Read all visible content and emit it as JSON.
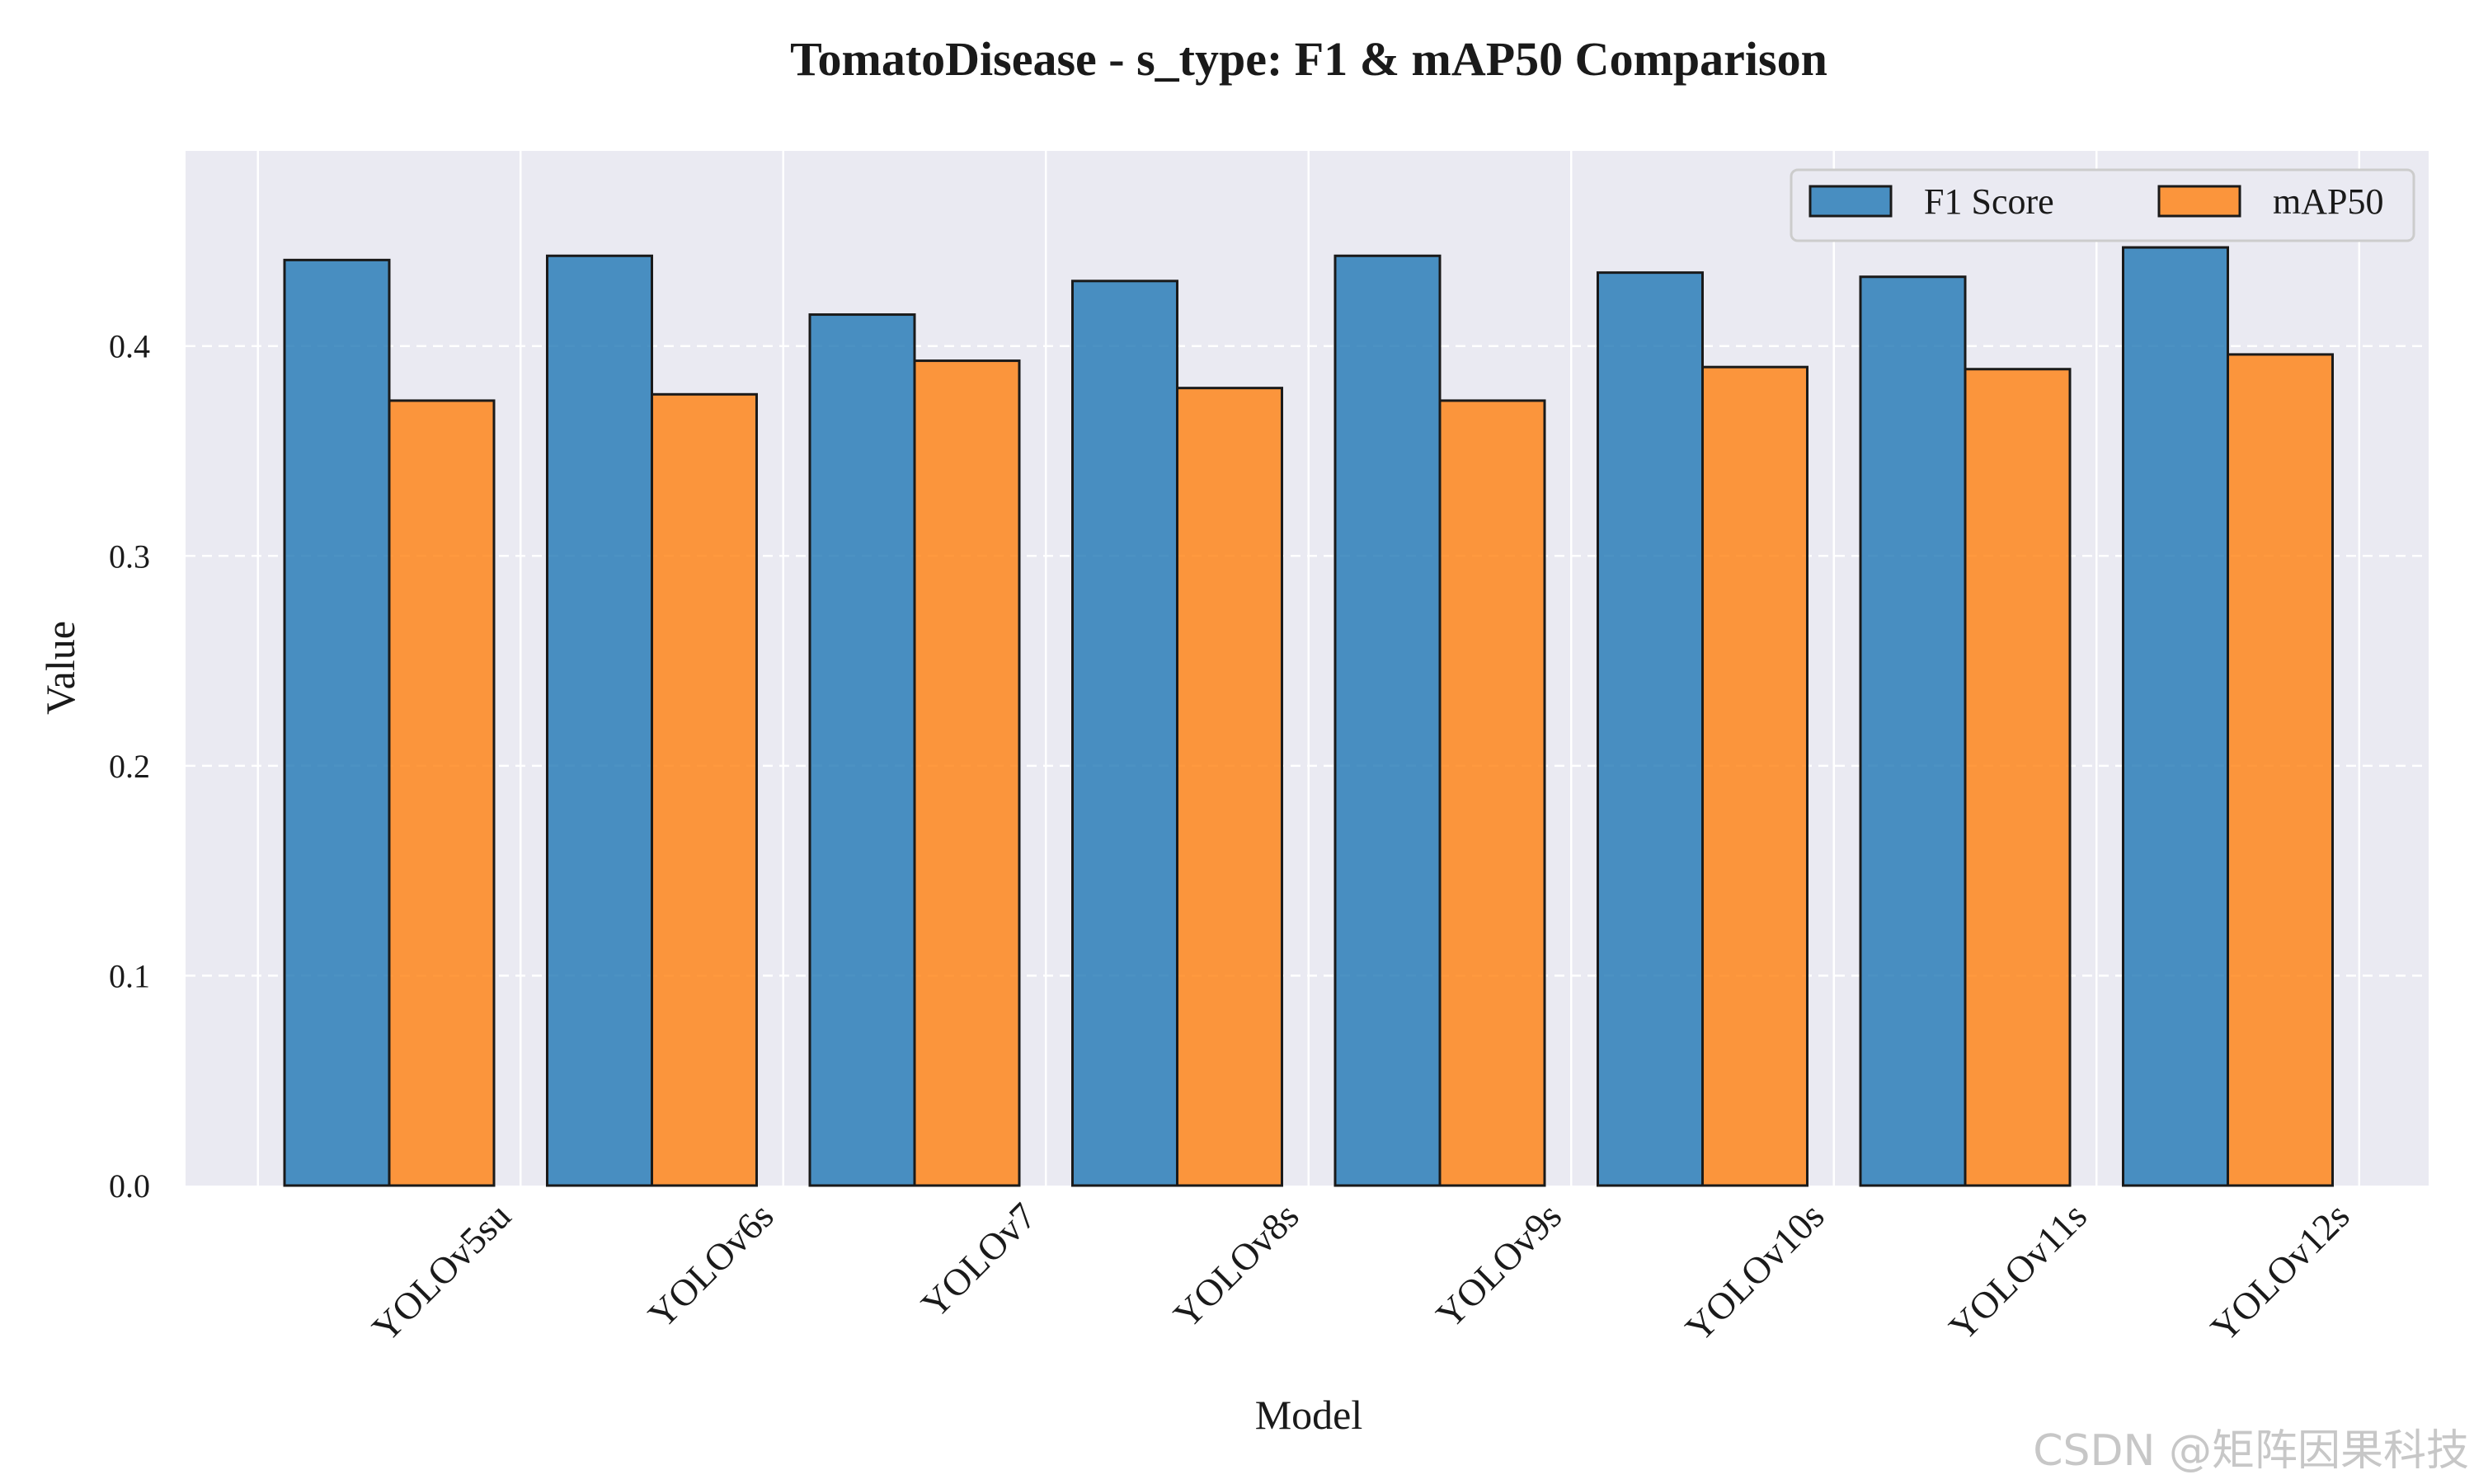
{
  "watermark": "CSDN @矩阵因果科技",
  "chart_data": {
    "type": "bar",
    "title": "TomatoDisease - s_type: F1 & mAP50 Comparison",
    "xlabel": "Model",
    "ylabel": "Value",
    "categories": [
      "YOLOv5su",
      "YOLOv6s",
      "YOLOv7",
      "YOLOv8s",
      "YOLOv9s",
      "YOLOv10s",
      "YOLOv11s",
      "YOLOv12s"
    ],
    "series": [
      {
        "name": "F1 Score",
        "color": "#1f77b4",
        "values": [
          0.441,
          0.443,
          0.415,
          0.431,
          0.443,
          0.435,
          0.433,
          0.447
        ]
      },
      {
        "name": "mAP50",
        "color": "#ff7f0e",
        "values": [
          0.374,
          0.377,
          0.393,
          0.38,
          0.374,
          0.39,
          0.389,
          0.396
        ]
      }
    ],
    "ylim": [
      0,
      0.493
    ],
    "yticks": [
      0.0,
      0.1,
      0.2,
      0.3,
      0.4
    ],
    "ytick_labels": [
      "0.0",
      "0.1",
      "0.2",
      "0.3",
      "0.4"
    ],
    "grid": true,
    "legend_position": "top-right",
    "background_color": "#eaeaf2"
  }
}
